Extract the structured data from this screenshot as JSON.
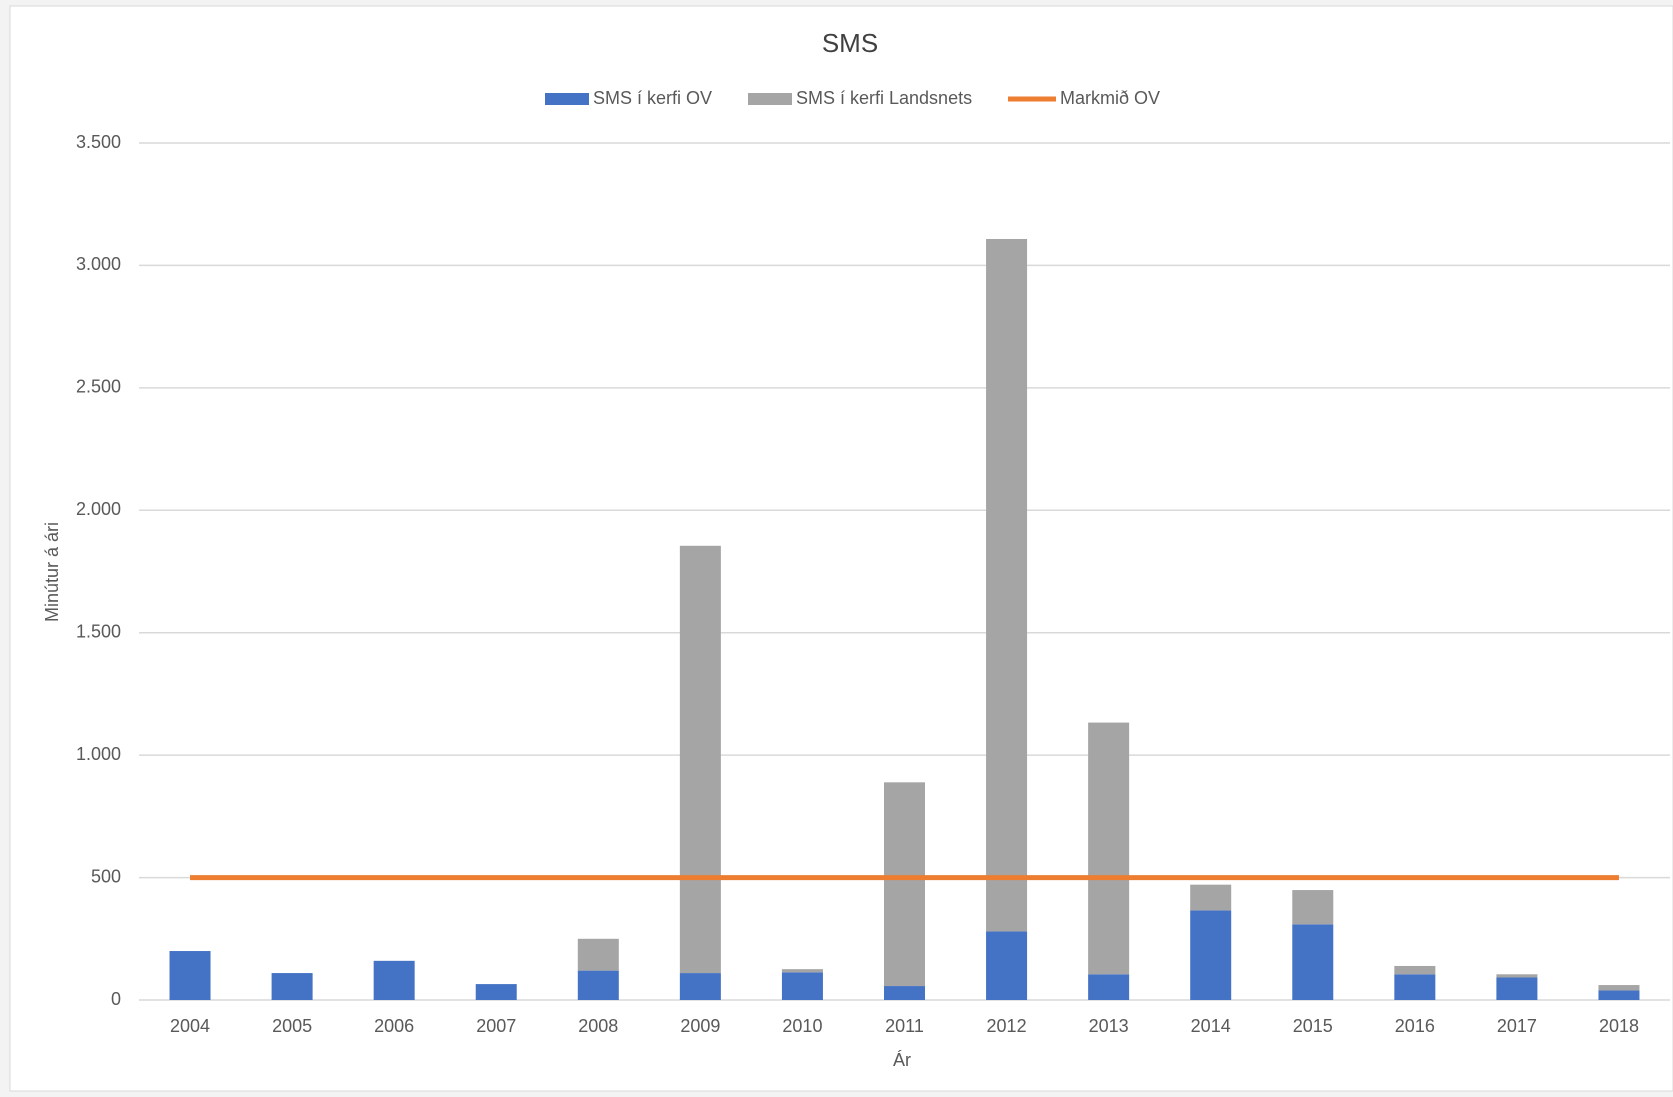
{
  "chart_data": {
    "type": "stacked_bar_line",
    "title": "SMS",
    "x_label": "Ár",
    "y_label": "Minútur á ári",
    "categories": [
      "2004",
      "2005",
      "2006",
      "2007",
      "2008",
      "2009",
      "2010",
      "2011",
      "2012",
      "2013",
      "2014",
      "2015",
      "2016",
      "2017",
      "2018"
    ],
    "series": [
      {
        "name": "SMS í kerfi OV",
        "color": "#4472c4",
        "kind": "bar",
        "values": [
          200,
          110,
          160,
          65,
          120,
          110,
          113,
          57,
          280,
          105,
          366,
          309,
          105,
          92,
          39
        ]
      },
      {
        "name": "SMS í kerfi Landsnets",
        "color": "#a5a5a5",
        "kind": "bar",
        "values": [
          0,
          0,
          0,
          0,
          130,
          1745,
          13,
          832,
          2828,
          1028,
          105,
          140,
          34,
          13,
          22
        ]
      },
      {
        "name": "Markmið OV",
        "color": "#ed7d31",
        "kind": "line",
        "values": [
          500,
          500,
          500,
          500,
          500,
          500,
          500,
          500,
          500,
          500,
          500,
          500,
          500,
          500,
          500
        ]
      }
    ],
    "ylim": [
      0,
      3500
    ],
    "yticks": [
      0,
      500,
      {
        "value": 1000,
        "label": "1.000"
      },
      {
        "value": 1500,
        "label": "1.500"
      },
      {
        "value": 2000,
        "label": "2.000"
      },
      {
        "value": 2500,
        "label": "2.500"
      },
      {
        "value": 3000,
        "label": "3.000"
      },
      {
        "value": 3500,
        "label": "3.500"
      }
    ],
    "grid": true,
    "legend": "top"
  }
}
